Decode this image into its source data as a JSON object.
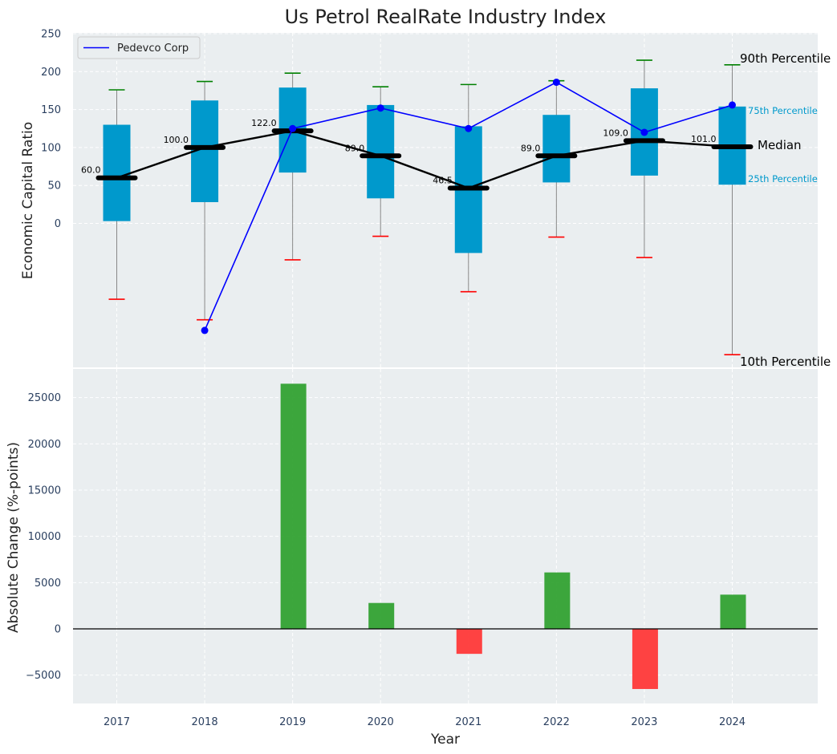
{
  "chart_data": [
    {
      "type": "box",
      "title": "Us Petrol RealRate Industry Index",
      "ylabel": "Economic Capital Ratio",
      "ylim": [
        -185,
        250
      ],
      "yticks": [
        0,
        50,
        100,
        150,
        200,
        250
      ],
      "categories": [
        "2017",
        "2018",
        "2019",
        "2020",
        "2021",
        "2022",
        "2023",
        "2024"
      ],
      "p10": [
        -100,
        -127,
        -48,
        -17,
        -90,
        -18,
        -45,
        -173
      ],
      "p25": [
        3,
        28,
        67,
        33,
        -39,
        54,
        63,
        51
      ],
      "median": [
        60,
        100,
        122,
        89,
        46.5,
        89,
        109,
        101
      ],
      "p75": [
        130,
        162,
        179,
        156,
        128,
        143,
        178,
        154
      ],
      "p90": [
        176,
        187,
        198,
        180,
        183,
        188,
        215,
        209
      ],
      "median_labels": [
        "60.0",
        "100.0",
        "122.0",
        "89.0",
        "46.5",
        "89.0",
        "109.0",
        "101.0"
      ],
      "series": [
        {
          "name": "Pedevco Corp",
          "values": [
            null,
            -141,
            125,
            152,
            125,
            186,
            120,
            156
          ],
          "color": "#0000ff"
        }
      ],
      "percentile_labels": {
        "p90": "90th Percentile",
        "p75": "75th Percentile",
        "median": "Median",
        "p25": "25th Percentile",
        "p10": "10th Percentile"
      },
      "colors": {
        "box": "#0099cc",
        "median": "#000000",
        "p90_cap": "#008000",
        "p10_cap": "#ff0000",
        "whisker": "#888888",
        "background": "#eaeef0"
      },
      "legend_position": "top-left",
      "grid": true
    },
    {
      "type": "bar",
      "categories": [
        "2017",
        "2018",
        "2019",
        "2020",
        "2021",
        "2022",
        "2023",
        "2024"
      ],
      "values": [
        0,
        0,
        26500,
        2800,
        -2700,
        6100,
        -6500,
        3700
      ],
      "xlabel": "Year",
      "ylabel": "Absolute Change (%-points)",
      "ylim": [
        -8000,
        28000
      ],
      "yticks": [
        -5000,
        0,
        5000,
        10000,
        15000,
        20000,
        25000
      ],
      "ytick_labels": [
        "−5000",
        "0",
        "5000",
        "10000",
        "15000",
        "20000",
        "25000"
      ],
      "colors": {
        "positive": "#2ca02c",
        "negative": "#ff3333"
      },
      "grid": true
    }
  ]
}
